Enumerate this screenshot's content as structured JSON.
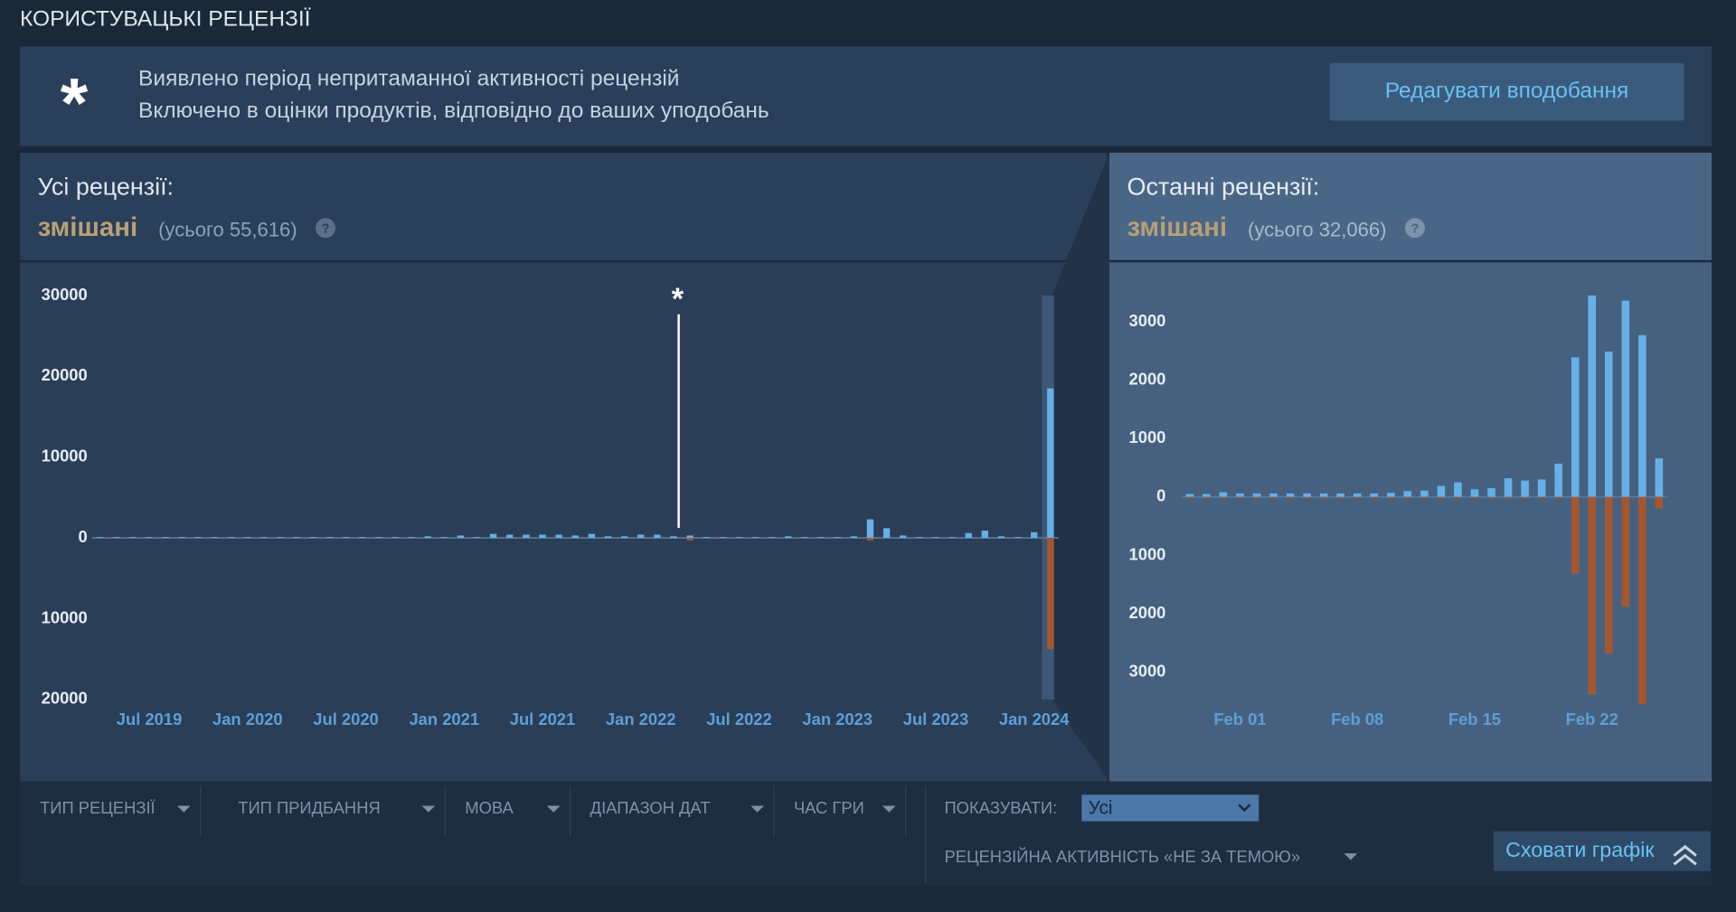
{
  "section_title": "КОРИСТУВАЦЬКІ РЕЦЕНЗІЇ",
  "banner": {
    "icon": "*",
    "line1": "Виявлено період непритаманної активності рецензій",
    "line2": "Включено в оцінки продуктів, відповідно до ваших уподобань",
    "button": "Редагувати вподобання"
  },
  "panels": [
    {
      "title": "Усі рецензії:",
      "rating": "змішані",
      "total": "(усього 55,616)",
      "help": "?",
      "chart": {
        "type": "bar",
        "annotation": "*",
        "categories": [
          null,
          null,
          null,
          "Jul 2019",
          null,
          null,
          null,
          null,
          null,
          "Jan 2020",
          null,
          null,
          null,
          null,
          null,
          "Jul 2020",
          null,
          null,
          null,
          null,
          null,
          "Jan 2021",
          null,
          null,
          null,
          null,
          null,
          "Jul 2021",
          null,
          null,
          null,
          null,
          null,
          "Jan 2022",
          null,
          null,
          null,
          null,
          null,
          "Jul 2022",
          null,
          null,
          null,
          null,
          null,
          "Jan 2023",
          null,
          null,
          null,
          null,
          null,
          "Jul 2023",
          null,
          null,
          null,
          null,
          null,
          "Jan 2024",
          null
        ],
        "series": [
          {
            "color": "#66b0e8",
            "values": [
              100,
              100,
              100,
              100,
              100,
              100,
              100,
              100,
              100,
              100,
              100,
              100,
              100,
              100,
              100,
              100,
              100,
              100,
              100,
              100,
              200,
              100,
              300,
              100,
              500,
              400,
              400,
              400,
              400,
              300,
              500,
              200,
              200,
              400,
              400,
              200,
              300,
              100,
              100,
              100,
              100,
              100,
              200,
              100,
              100,
              100,
              200,
              2300,
              1200,
              300,
              100,
              100,
              100,
              600,
              900,
              200,
              100,
              700,
              18500
            ]
          },
          {
            "color": "#a6562e",
            "values": [
              0,
              0,
              0,
              0,
              0,
              0,
              0,
              0,
              0,
              0,
              0,
              0,
              0,
              0,
              0,
              0,
              0,
              0,
              0,
              0,
              0,
              0,
              0,
              0,
              0,
              0,
              0,
              0,
              0,
              0,
              0,
              0,
              0,
              0,
              0,
              0,
              -300,
              0,
              0,
              0,
              0,
              0,
              0,
              0,
              0,
              0,
              0,
              -300,
              0,
              0,
              0,
              0,
              0,
              0,
              0,
              0,
              0,
              0,
              -13800
            ]
          }
        ],
        "ylim": [
          -20000,
          30000
        ],
        "yticks": [
          {
            "value": -20000,
            "label": "20000"
          },
          {
            "value": -10000,
            "label": "10000"
          },
          0,
          10000,
          20000,
          30000
        ]
      }
    },
    {
      "title": "Останні рецензії:",
      "rating": "змішані",
      "total": "(усього 32,066)",
      "help": "?",
      "chart": {
        "type": "bar",
        "categories": [
          null,
          null,
          null,
          "Feb 01",
          null,
          null,
          null,
          null,
          null,
          null,
          "Feb 08",
          null,
          null,
          null,
          null,
          null,
          null,
          "Feb 15",
          null,
          null,
          null,
          null,
          null,
          null,
          "Feb 22",
          null,
          null,
          null,
          null
        ],
        "series": [
          {
            "color": "#66b0e8",
            "values": [
              50,
              50,
              80,
              60,
              60,
              60,
              60,
              60,
              60,
              60,
              60,
              60,
              70,
              100,
              110,
              190,
              250,
              130,
              150,
              320,
              280,
              300,
              570,
              2390,
              3450,
              2490,
              3360,
              2770,
              660
            ]
          },
          {
            "color": "#a6562e",
            "values": [
              -20,
              -20,
              -20,
              -20,
              -20,
              -20,
              -20,
              -20,
              -20,
              -20,
              -20,
              -20,
              -20,
              -20,
              -20,
              -20,
              -20,
              -20,
              -20,
              -20,
              -20,
              -20,
              -20,
              -1310,
              -3380,
              -2680,
              -1880,
              -3550,
              -200
            ]
          }
        ],
        "ylim": [
          -3600,
          3600
        ],
        "yticks": [
          {
            "value": -3000,
            "label": "3000"
          },
          {
            "value": -2000,
            "label": "2000"
          },
          {
            "value": -1000,
            "label": "1000"
          },
          0,
          1000,
          2000,
          3000
        ]
      }
    }
  ],
  "filters": [
    "ТИП РЕЦЕНЗІЇ",
    "ТИП ПРИДБАННЯ",
    "МОВА",
    "ДІАПАЗОН ДАТ",
    "ЧАС ГРИ"
  ],
  "show_label": "ПОКАЗУВАТИ:",
  "show_value": "Усі",
  "offtopic": "РЕЦЕНЗІЙНА АКТИВНІСТЬ «НЕ ЗА ТЕМОЮ»",
  "hide_button": "Сховати графік"
}
